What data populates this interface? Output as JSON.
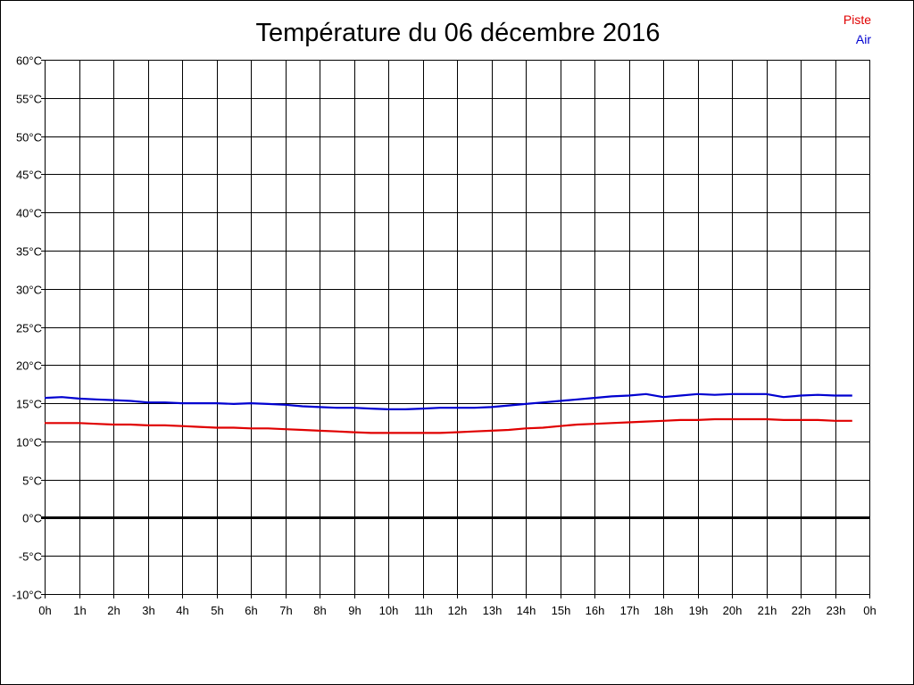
{
  "chart_data": {
    "type": "line",
    "title": "Température du 06 décembre 2016",
    "xlabel": "",
    "ylabel": "",
    "x_ticks": [
      "0h",
      "1h",
      "2h",
      "3h",
      "4h",
      "5h",
      "6h",
      "7h",
      "8h",
      "9h",
      "10h",
      "11h",
      "12h",
      "13h",
      "14h",
      "15h",
      "16h",
      "17h",
      "18h",
      "19h",
      "20h",
      "21h",
      "22h",
      "23h",
      "0h"
    ],
    "y_ticks": [
      "60°C",
      "55°C",
      "50°C",
      "45°C",
      "40°C",
      "35°C",
      "30°C",
      "25°C",
      "20°C",
      "15°C",
      "10°C",
      "5°C",
      "0°C",
      "-5°C",
      "-10°C"
    ],
    "xlim": [
      0,
      24
    ],
    "ylim": [
      -10,
      60
    ],
    "grid": true,
    "legend_position": "top-right",
    "zero_line": 0,
    "series": [
      {
        "name": "Piste",
        "color": "#e00000",
        "x": [
          0,
          0.5,
          1,
          1.5,
          2,
          2.5,
          3,
          3.5,
          4,
          4.5,
          5,
          5.5,
          6,
          6.5,
          7,
          7.5,
          8,
          8.5,
          9,
          9.5,
          10,
          10.5,
          11,
          11.5,
          12,
          12.5,
          13,
          13.5,
          14,
          14.5,
          15,
          15.5,
          16,
          16.5,
          17,
          17.5,
          18,
          18.5,
          19,
          19.5,
          20,
          20.5,
          21,
          21.5,
          22,
          22.5,
          23,
          23.5
        ],
        "values": [
          12.4,
          12.4,
          12.4,
          12.3,
          12.2,
          12.2,
          12.1,
          12.1,
          12.0,
          11.9,
          11.8,
          11.8,
          11.7,
          11.7,
          11.6,
          11.5,
          11.4,
          11.3,
          11.2,
          11.1,
          11.1,
          11.1,
          11.1,
          11.1,
          11.2,
          11.3,
          11.4,
          11.5,
          11.7,
          11.8,
          12.0,
          12.2,
          12.3,
          12.4,
          12.5,
          12.6,
          12.7,
          12.8,
          12.8,
          12.9,
          12.9,
          12.9,
          12.9,
          12.8,
          12.8,
          12.8,
          12.7,
          12.7
        ]
      },
      {
        "name": "Air",
        "color": "#0000d0",
        "x": [
          0,
          0.5,
          1,
          1.5,
          2,
          2.5,
          3,
          3.5,
          4,
          4.5,
          5,
          5.5,
          6,
          6.5,
          7,
          7.5,
          8,
          8.5,
          9,
          9.5,
          10,
          10.5,
          11,
          11.5,
          12,
          12.5,
          13,
          13.5,
          14,
          14.5,
          15,
          15.5,
          16,
          16.5,
          17,
          17.5,
          18,
          18.5,
          19,
          19.5,
          20,
          20.5,
          21,
          21.5,
          22,
          22.5,
          23,
          23.5
        ],
        "values": [
          15.7,
          15.8,
          15.6,
          15.5,
          15.4,
          15.3,
          15.1,
          15.1,
          15.0,
          15.0,
          15.0,
          14.9,
          15.0,
          14.9,
          14.8,
          14.6,
          14.5,
          14.4,
          14.4,
          14.3,
          14.2,
          14.2,
          14.3,
          14.4,
          14.4,
          14.4,
          14.5,
          14.7,
          14.9,
          15.1,
          15.3,
          15.5,
          15.7,
          15.9,
          16.0,
          16.2,
          15.8,
          16.0,
          16.2,
          16.1,
          16.2,
          16.2,
          16.2,
          15.8,
          16.0,
          16.1,
          16.0,
          16.0
        ]
      }
    ]
  }
}
